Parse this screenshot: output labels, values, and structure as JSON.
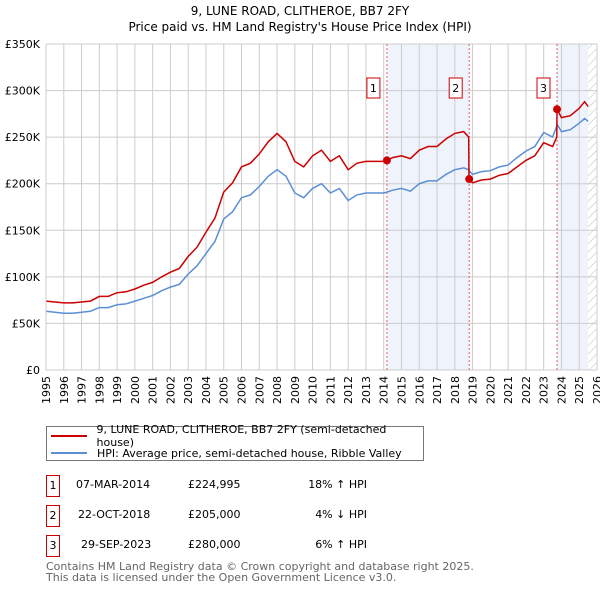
{
  "title": "9, LUNE ROAD, CLITHEROE, BB7 2FY",
  "subtitle": "Price paid vs. HM Land Registry's House Price Index (HPI)",
  "chart_data": {
    "type": "line",
    "title": "9, LUNE ROAD, CLITHEROE, BB7 2FY",
    "subtitle": "Price paid vs. HM Land Registry's House Price Index (HPI)",
    "xlim": [
      1995,
      2026
    ],
    "ylim": [
      0,
      350000
    ],
    "x_ticks": [
      "1995",
      "1996",
      "1997",
      "1998",
      "1999",
      "2000",
      "2001",
      "2002",
      "2003",
      "2004",
      "2005",
      "2006",
      "2007",
      "2008",
      "2009",
      "2010",
      "2011",
      "2012",
      "2013",
      "2014",
      "2015",
      "2016",
      "2017",
      "2018",
      "2019",
      "2020",
      "2021",
      "2022",
      "2023",
      "2024",
      "2025",
      "2026"
    ],
    "y_ticks": [
      {
        "value": 0,
        "label": "£0"
      },
      {
        "value": 50000,
        "label": "£50K"
      },
      {
        "value": 100000,
        "label": "£100K"
      },
      {
        "value": 150000,
        "label": "£150K"
      },
      {
        "value": 200000,
        "label": "£200K"
      },
      {
        "value": 250000,
        "label": "£250K"
      },
      {
        "value": 300000,
        "label": "£300K"
      },
      {
        "value": 350000,
        "label": "£350K"
      }
    ],
    "grid": true,
    "x": [
      1995,
      1995.5,
      1996,
      1996.5,
      1997,
      1997.5,
      1998,
      1998.5,
      1999,
      1999.5,
      2000,
      2000.5,
      2001,
      2001.5,
      2002,
      2002.5,
      2003,
      2003.5,
      2004,
      2004.5,
      2005,
      2005.5,
      2006,
      2006.5,
      2007,
      2007.5,
      2008,
      2008.5,
      2009,
      2009.5,
      2010,
      2010.5,
      2011,
      2011.5,
      2012,
      2012.5,
      2013,
      2013.5,
      2014,
      2014.18,
      2014.5,
      2015,
      2015.5,
      2016,
      2016.5,
      2017,
      2017.5,
      2018,
      2018.5,
      2018.78,
      2018.8,
      2019,
      2019.5,
      2020,
      2020.5,
      2021,
      2021.5,
      2022,
      2022.5,
      2023,
      2023.5,
      2023.74,
      2023.75,
      2024,
      2024.5,
      2025,
      2025.3,
      2025.5
    ],
    "series": [
      {
        "name": "9, LUNE ROAD, CLITHEROE, BB7 2FY (semi-detached house)",
        "color": "#cc0000",
        "values": [
          74000,
          73000,
          72000,
          72000,
          73000,
          74000,
          79000,
          79000,
          83000,
          84000,
          87000,
          91000,
          94000,
          100000,
          105000,
          109000,
          122000,
          132000,
          148000,
          163000,
          191000,
          201000,
          218000,
          222000,
          232000,
          245000,
          254000,
          245000,
          224000,
          218000,
          230000,
          236000,
          224000,
          230000,
          215000,
          222000,
          224000,
          224000,
          224000,
          224995,
          228000,
          230000,
          227000,
          236000,
          240000,
          240000,
          248000,
          254000,
          256000,
          250000,
          205000,
          201000,
          204000,
          205000,
          209000,
          211000,
          218000,
          225000,
          230000,
          244000,
          240000,
          250000,
          280000,
          271000,
          273000,
          281000,
          288000,
          283000
        ]
      },
      {
        "name": "HPI: Average price, semi-detached house, Ribble Valley",
        "color": "#5b8fd4",
        "values": [
          63000,
          62000,
          61000,
          61000,
          62000,
          63000,
          67000,
          67000,
          70000,
          71000,
          74000,
          77000,
          80000,
          85000,
          89000,
          92000,
          103000,
          112000,
          125000,
          138000,
          162000,
          170000,
          185000,
          188000,
          197000,
          208000,
          215000,
          208000,
          190000,
          185000,
          195000,
          200000,
          190000,
          195000,
          182000,
          188000,
          190000,
          190000,
          190000,
          191000,
          193000,
          195000,
          192000,
          200000,
          203000,
          203000,
          210000,
          215000,
          217000,
          215000,
          214000,
          210000,
          213000,
          214000,
          218000,
          220000,
          228000,
          235000,
          240000,
          255000,
          250000,
          262000,
          264000,
          256000,
          258000,
          265000,
          270000,
          267000
        ]
      }
    ],
    "sales": [
      {
        "id": "1",
        "x": 2014.18,
        "value": 224995
      },
      {
        "id": "2",
        "x": 2018.81,
        "value": 205000
      },
      {
        "id": "3",
        "x": 2023.75,
        "value": 280000
      }
    ],
    "shaded_ranges": [
      [
        2014.18,
        2018.81
      ],
      [
        2023.75,
        2025.5
      ]
    ],
    "hatched_from": 2025.5,
    "legend_placement": "below"
  },
  "legend": [
    {
      "label": "9, LUNE ROAD, CLITHEROE, BB7 2FY (semi-detached house)",
      "color": "#cc0000"
    },
    {
      "label": "HPI: Average price, semi-detached house, Ribble Valley",
      "color": "#5b8fd4"
    }
  ],
  "transactions": [
    {
      "id": "1",
      "date": "07-MAR-2014",
      "price": "£224,995",
      "hpi": "18% ↑ HPI"
    },
    {
      "id": "2",
      "date": "22-OCT-2018",
      "price": "£205,000",
      "hpi": "4% ↓ HPI"
    },
    {
      "id": "3",
      "date": "29-SEP-2023",
      "price": "£280,000",
      "hpi": "6% ↑ HPI"
    }
  ],
  "footer": {
    "line1": "Contains HM Land Registry data © Crown copyright and database right 2025.",
    "line2": "This data is licensed under the Open Government Licence v3.0."
  }
}
